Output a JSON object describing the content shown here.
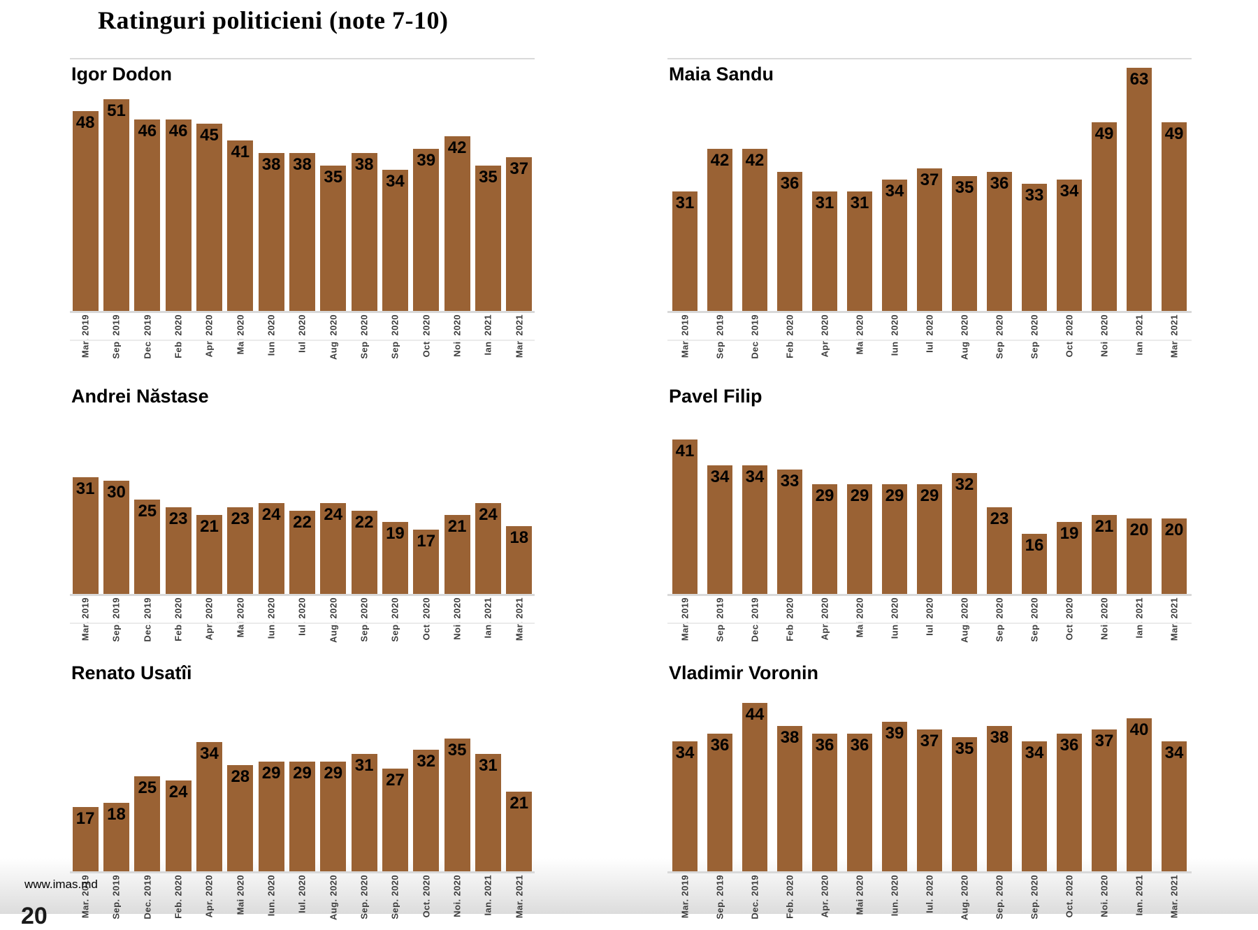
{
  "page": {
    "title": "Ratinguri politicieni (note 7-10)"
  },
  "footer": {
    "website": "www.imas.md",
    "page_number": "20"
  },
  "months": [
    "Mar. 2019",
    "Sep. 2019",
    "Dec. 2019",
    "Feb. 2020",
    "Apr. 2020",
    "Mai 2020",
    "Iun. 2020",
    "Iul. 2020",
    "Aug. 2020",
    "Sep. 2020",
    "Sep. 2020",
    "Oct. 2020",
    "Noi. 2020",
    "Ian. 2021",
    "Mar. 2021"
  ],
  "chart_data": [
    {
      "type": "bar",
      "title": "Igor Dodon",
      "categories": [
        "Mar. 2019",
        "Sep. 2019",
        "Dec. 2019",
        "Feb. 2020",
        "Apr. 2020",
        "Mai 2020",
        "Iun. 2020",
        "Iul. 2020",
        "Aug. 2020",
        "Sep. 2020",
        "Sep. 2020",
        "Oct. 2020",
        "Noi. 2020",
        "Ian. 2021",
        "Mar. 2021"
      ],
      "values": [
        48,
        51,
        46,
        46,
        45,
        41,
        38,
        38,
        35,
        38,
        34,
        39,
        42,
        35,
        37
      ],
      "bar_color": "#9A6234",
      "value_label_position": "inside-end",
      "x_tick_rotation": 90,
      "grid": false,
      "legend": false,
      "yaxis_visible": false
    },
    {
      "type": "bar",
      "title": "Maia Sandu",
      "categories": [
        "Mar. 2019",
        "Sep. 2019",
        "Dec. 2019",
        "Feb. 2020",
        "Apr. 2020",
        "Mai 2020",
        "Iun. 2020",
        "Iul. 2020",
        "Aug. 2020",
        "Sep. 2020",
        "Sep. 2020",
        "Oct. 2020",
        "Noi. 2020",
        "Ian. 2021",
        "Mar. 2021"
      ],
      "values": [
        31,
        42,
        42,
        36,
        31,
        31,
        34,
        37,
        35,
        36,
        33,
        34,
        49,
        63,
        49
      ],
      "bar_color": "#9A6234",
      "value_label_position": "inside-end",
      "x_tick_rotation": 90,
      "grid": false,
      "legend": false,
      "yaxis_visible": false
    },
    {
      "type": "bar",
      "title": "Andrei Năstase",
      "categories": [
        "Mar. 2019",
        "Sep. 2019",
        "Dec. 2019",
        "Feb. 2020",
        "Apr. 2020",
        "Mai 2020",
        "Iun. 2020",
        "Iul. 2020",
        "Aug. 2020",
        "Sep. 2020",
        "Sep. 2020",
        "Oct. 2020",
        "Noi. 2020",
        "Ian. 2021",
        "Mar. 2021"
      ],
      "values": [
        31,
        30,
        25,
        23,
        21,
        23,
        24,
        22,
        24,
        22,
        19,
        17,
        21,
        24,
        18
      ],
      "bar_color": "#9A6234",
      "value_label_position": "inside-end",
      "x_tick_rotation": 90,
      "grid": false,
      "legend": false,
      "yaxis_visible": false
    },
    {
      "type": "bar",
      "title": "Pavel Filip",
      "categories": [
        "Mar. 2019",
        "Sep. 2019",
        "Dec. 2019",
        "Feb. 2020",
        "Apr. 2020",
        "Mai 2020",
        "Iun. 2020",
        "Iul. 2020",
        "Aug. 2020",
        "Sep. 2020",
        "Sep. 2020",
        "Oct. 2020",
        "Noi. 2020",
        "Ian. 2021",
        "Mar. 2021"
      ],
      "values": [
        41,
        34,
        34,
        33,
        29,
        29,
        29,
        29,
        32,
        23,
        16,
        19,
        21,
        20,
        20
      ],
      "bar_color": "#9A6234",
      "value_label_position": "inside-end",
      "x_tick_rotation": 90,
      "grid": false,
      "legend": false,
      "yaxis_visible": false
    },
    {
      "type": "bar",
      "title": "Renato Usatîi",
      "categories": [
        "Mar. 2019",
        "Sep. 2019",
        "Dec. 2019",
        "Feb. 2020",
        "Apr. 2020",
        "Mai 2020",
        "Iun. 2020",
        "Iul. 2020",
        "Aug. 2020",
        "Sep. 2020",
        "Sep. 2020",
        "Oct. 2020",
        "Noi. 2020",
        "Ian. 2021",
        "Mar. 2021"
      ],
      "values": [
        17,
        18,
        25,
        24,
        34,
        28,
        29,
        29,
        29,
        31,
        27,
        32,
        35,
        31,
        21
      ],
      "bar_color": "#9A6234",
      "value_label_position": "inside-end",
      "x_tick_rotation": 90,
      "grid": false,
      "legend": false,
      "yaxis_visible": false
    },
    {
      "type": "bar",
      "title": "Vladimir Voronin",
      "categories": [
        "Mar. 2019",
        "Sep. 2019",
        "Dec. 2019",
        "Feb. 2020",
        "Apr. 2020",
        "Mai 2020",
        "Iun. 2020",
        "Iul. 2020",
        "Aug. 2020",
        "Sep. 2020",
        "Sep. 2020",
        "Oct. 2020",
        "Noi. 2020",
        "Ian. 2021",
        "Mar. 2021"
      ],
      "values": [
        34,
        36,
        44,
        38,
        36,
        36,
        39,
        37,
        35,
        38,
        34,
        36,
        37,
        40,
        34
      ],
      "bar_color": "#9A6234",
      "value_label_position": "inside-end",
      "x_tick_rotation": 90,
      "grid": false,
      "legend": false,
      "yaxis_visible": false
    }
  ]
}
